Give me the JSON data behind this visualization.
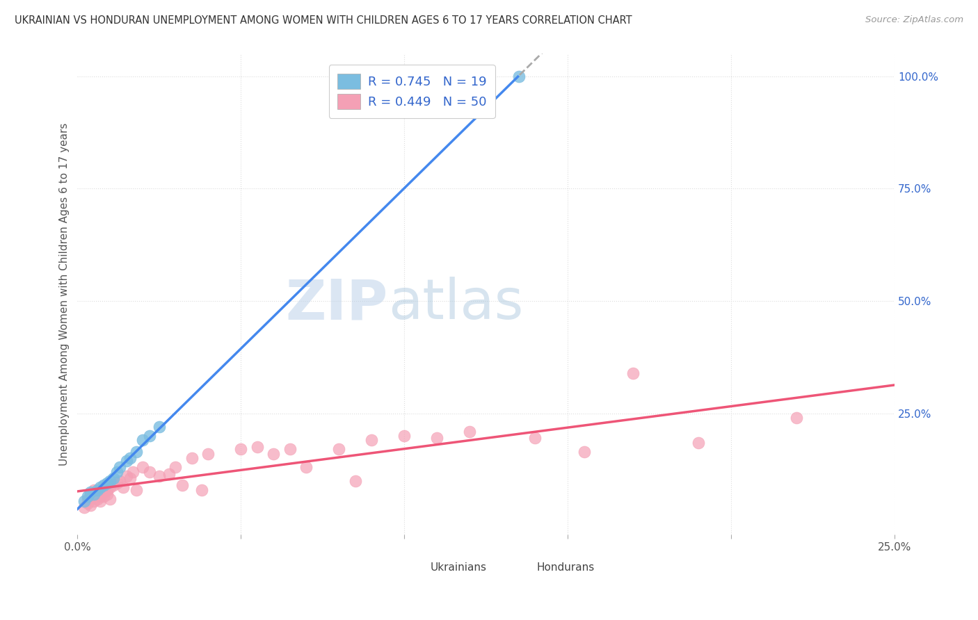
{
  "title": "UKRAINIAN VS HONDURAN UNEMPLOYMENT AMONG WOMEN WITH CHILDREN AGES 6 TO 17 YEARS CORRELATION CHART",
  "source": "Source: ZipAtlas.com",
  "ylabel": "Unemployment Among Women with Children Ages 6 to 17 years",
  "xlim": [
    0.0,
    0.25
  ],
  "ylim": [
    -0.02,
    1.05
  ],
  "yticks_right": [
    0.0,
    0.25,
    0.5,
    0.75,
    1.0
  ],
  "ytick_labels_right": [
    "",
    "25.0%",
    "50.0%",
    "75.0%",
    "100.0%"
  ],
  "ukrainian_R": 0.745,
  "ukrainian_N": 19,
  "honduran_R": 0.449,
  "honduran_N": 50,
  "ukrainian_color": "#7bbde0",
  "honduran_color": "#f4a0b5",
  "trend_blue": "#4488ee",
  "trend_pink": "#ee5577",
  "trend_gray": "#aaaaaa",
  "watermark_zip": "ZIP",
  "watermark_atlas": "atlas",
  "background_color": "#ffffff",
  "grid_color": "#dddddd",
  "title_color": "#333333",
  "source_color": "#999999",
  "legend_color": "#3366cc",
  "ukrainian_x": [
    0.002,
    0.003,
    0.004,
    0.005,
    0.006,
    0.007,
    0.008,
    0.009,
    0.01,
    0.011,
    0.012,
    0.013,
    0.015,
    0.016,
    0.018,
    0.02,
    0.022,
    0.025,
    0.135
  ],
  "ukrainian_y": [
    0.055,
    0.065,
    0.075,
    0.07,
    0.08,
    0.085,
    0.09,
    0.095,
    0.1,
    0.105,
    0.12,
    0.13,
    0.145,
    0.15,
    0.165,
    0.19,
    0.2,
    0.22,
    1.0
  ],
  "honduran_x": [
    0.002,
    0.003,
    0.003,
    0.004,
    0.004,
    0.005,
    0.005,
    0.006,
    0.006,
    0.007,
    0.007,
    0.008,
    0.008,
    0.009,
    0.009,
    0.01,
    0.01,
    0.011,
    0.012,
    0.013,
    0.014,
    0.015,
    0.016,
    0.017,
    0.018,
    0.02,
    0.022,
    0.025,
    0.028,
    0.03,
    0.032,
    0.035,
    0.038,
    0.04,
    0.05,
    0.055,
    0.06,
    0.065,
    0.07,
    0.08,
    0.085,
    0.09,
    0.1,
    0.11,
    0.12,
    0.14,
    0.155,
    0.17,
    0.19,
    0.22
  ],
  "honduran_y": [
    0.04,
    0.05,
    0.06,
    0.045,
    0.07,
    0.055,
    0.08,
    0.06,
    0.075,
    0.065,
    0.055,
    0.075,
    0.065,
    0.07,
    0.08,
    0.085,
    0.06,
    0.09,
    0.095,
    0.1,
    0.085,
    0.11,
    0.105,
    0.12,
    0.08,
    0.13,
    0.12,
    0.11,
    0.115,
    0.13,
    0.09,
    0.15,
    0.08,
    0.16,
    0.17,
    0.175,
    0.16,
    0.17,
    0.13,
    0.17,
    0.1,
    0.19,
    0.2,
    0.195,
    0.21,
    0.195,
    0.165,
    0.34,
    0.185,
    0.24
  ]
}
